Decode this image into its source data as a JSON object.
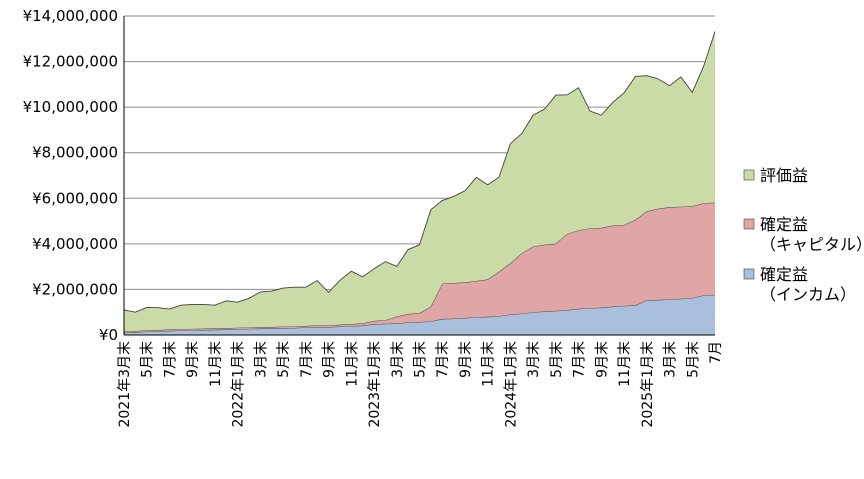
{
  "chart_data": {
    "type": "area",
    "stacked": true,
    "currency_prefix": "¥",
    "ylim": [
      0,
      14000000
    ],
    "yticks": [
      0,
      2000000,
      4000000,
      6000000,
      8000000,
      10000000,
      12000000,
      14000000
    ],
    "ytick_labels": [
      "¥0",
      "¥2,000,000",
      "¥4,000,000",
      "¥6,000,000",
      "¥8,000,000",
      "¥10,000,000",
      "¥12,000,000",
      "¥14,000,000"
    ],
    "grid": true,
    "legend_position": "right",
    "x": [
      "2021-03",
      "2021-04",
      "2021-05",
      "2021-06",
      "2021-07",
      "2021-08",
      "2021-09",
      "2021-10",
      "2021-11",
      "2021-12",
      "2022-01",
      "2022-02",
      "2022-03",
      "2022-04",
      "2022-05",
      "2022-06",
      "2022-07",
      "2022-08",
      "2022-09",
      "2022-10",
      "2022-11",
      "2022-12",
      "2023-01",
      "2023-02",
      "2023-03",
      "2023-04",
      "2023-05",
      "2023-06",
      "2023-07",
      "2023-08",
      "2023-09",
      "2023-10",
      "2023-11",
      "2023-12",
      "2024-01",
      "2024-02",
      "2024-03",
      "2024-04",
      "2024-05",
      "2024-06",
      "2024-07",
      "2024-08",
      "2024-09",
      "2024-10",
      "2024-11",
      "2024-12",
      "2025-01",
      "2025-02",
      "2025-03",
      "2025-04",
      "2025-05",
      "2025-06",
      "2025-07"
    ],
    "x_tick_labels": [
      {
        "index": 0,
        "label": "2021年3月末"
      },
      {
        "index": 2,
        "label": "5月末"
      },
      {
        "index": 4,
        "label": "7月末"
      },
      {
        "index": 6,
        "label": "9月末"
      },
      {
        "index": 8,
        "label": "11月末"
      },
      {
        "index": 10,
        "label": "2022年1月末"
      },
      {
        "index": 12,
        "label": "3月末"
      },
      {
        "index": 14,
        "label": "5月末"
      },
      {
        "index": 16,
        "label": "7月末"
      },
      {
        "index": 18,
        "label": "9月末"
      },
      {
        "index": 20,
        "label": "11月末"
      },
      {
        "index": 22,
        "label": "2023年1月末"
      },
      {
        "index": 24,
        "label": "3月末"
      },
      {
        "index": 26,
        "label": "5月末"
      },
      {
        "index": 28,
        "label": "7月末"
      },
      {
        "index": 30,
        "label": "9月末"
      },
      {
        "index": 32,
        "label": "11月末"
      },
      {
        "index": 34,
        "label": "2024年1月末"
      },
      {
        "index": 36,
        "label": "3月末"
      },
      {
        "index": 38,
        "label": "5月末"
      },
      {
        "index": 40,
        "label": "7月末"
      },
      {
        "index": 42,
        "label": "9月末"
      },
      {
        "index": 44,
        "label": "11月末"
      },
      {
        "index": 46,
        "label": "2025年1月末"
      },
      {
        "index": 48,
        "label": "3月末"
      },
      {
        "index": 50,
        "label": "5月末"
      },
      {
        "index": 52,
        "label": "7月"
      }
    ],
    "series": [
      {
        "name": "確定益（インカム）",
        "legend_lines": [
          "確定益",
          "（インカム）"
        ],
        "color": "#a9bfdc",
        "values": [
          100000,
          120000,
          150000,
          160000,
          180000,
          200000,
          210000,
          220000,
          230000,
          240000,
          260000,
          270000,
          280000,
          290000,
          300000,
          310000,
          330000,
          340000,
          350000,
          370000,
          390000,
          410000,
          470000,
          490000,
          510000,
          550000,
          570000,
          600000,
          700000,
          720000,
          750000,
          780000,
          800000,
          830000,
          900000,
          940000,
          1000000,
          1030000,
          1060000,
          1090000,
          1150000,
          1180000,
          1200000,
          1250000,
          1280000,
          1300000,
          1530000,
          1540000,
          1560000,
          1590000,
          1620000,
          1740000,
          1760000
        ]
      },
      {
        "name": "確定益（キャピタル）",
        "legend_lines": [
          "確定益",
          "（キャピタル）"
        ],
        "color": "#e0a5a5",
        "values": [
          50000,
          50000,
          60000,
          60000,
          60000,
          60000,
          60000,
          60000,
          60000,
          60000,
          60000,
          60000,
          60000,
          60000,
          70000,
          70000,
          70000,
          80000,
          80000,
          80000,
          90000,
          100000,
          150000,
          160000,
          300000,
          370000,
          390000,
          650000,
          1550000,
          1560000,
          1560000,
          1590000,
          1640000,
          1950000,
          2250000,
          2650000,
          2880000,
          2930000,
          2950000,
          3350000,
          3450000,
          3500000,
          3500000,
          3550000,
          3550000,
          3750000,
          3900000,
          4000000,
          4050000,
          4040000,
          4030000,
          4050000,
          4050000
        ]
      },
      {
        "name": "評価益",
        "legend_lines": [
          "評価益"
        ],
        "color": "#cbdba7",
        "values": [
          950000,
          830000,
          1000000,
          980000,
          900000,
          1050000,
          1070000,
          1060000,
          1020000,
          1200000,
          1120000,
          1280000,
          1550000,
          1580000,
          1690000,
          1720000,
          1700000,
          1970000,
          1440000,
          1950000,
          2320000,
          2040000,
          2290000,
          2570000,
          2200000,
          2830000,
          3000000,
          4250000,
          3650000,
          3800000,
          4020000,
          4550000,
          4150000,
          4150000,
          5250000,
          5250000,
          5770000,
          5950000,
          6520000,
          6100000,
          6250000,
          5150000,
          4950000,
          5400000,
          5800000,
          6300000,
          5950000,
          5700000,
          5330000,
          5700000,
          5000000,
          6000000,
          7510000
        ]
      }
    ]
  }
}
